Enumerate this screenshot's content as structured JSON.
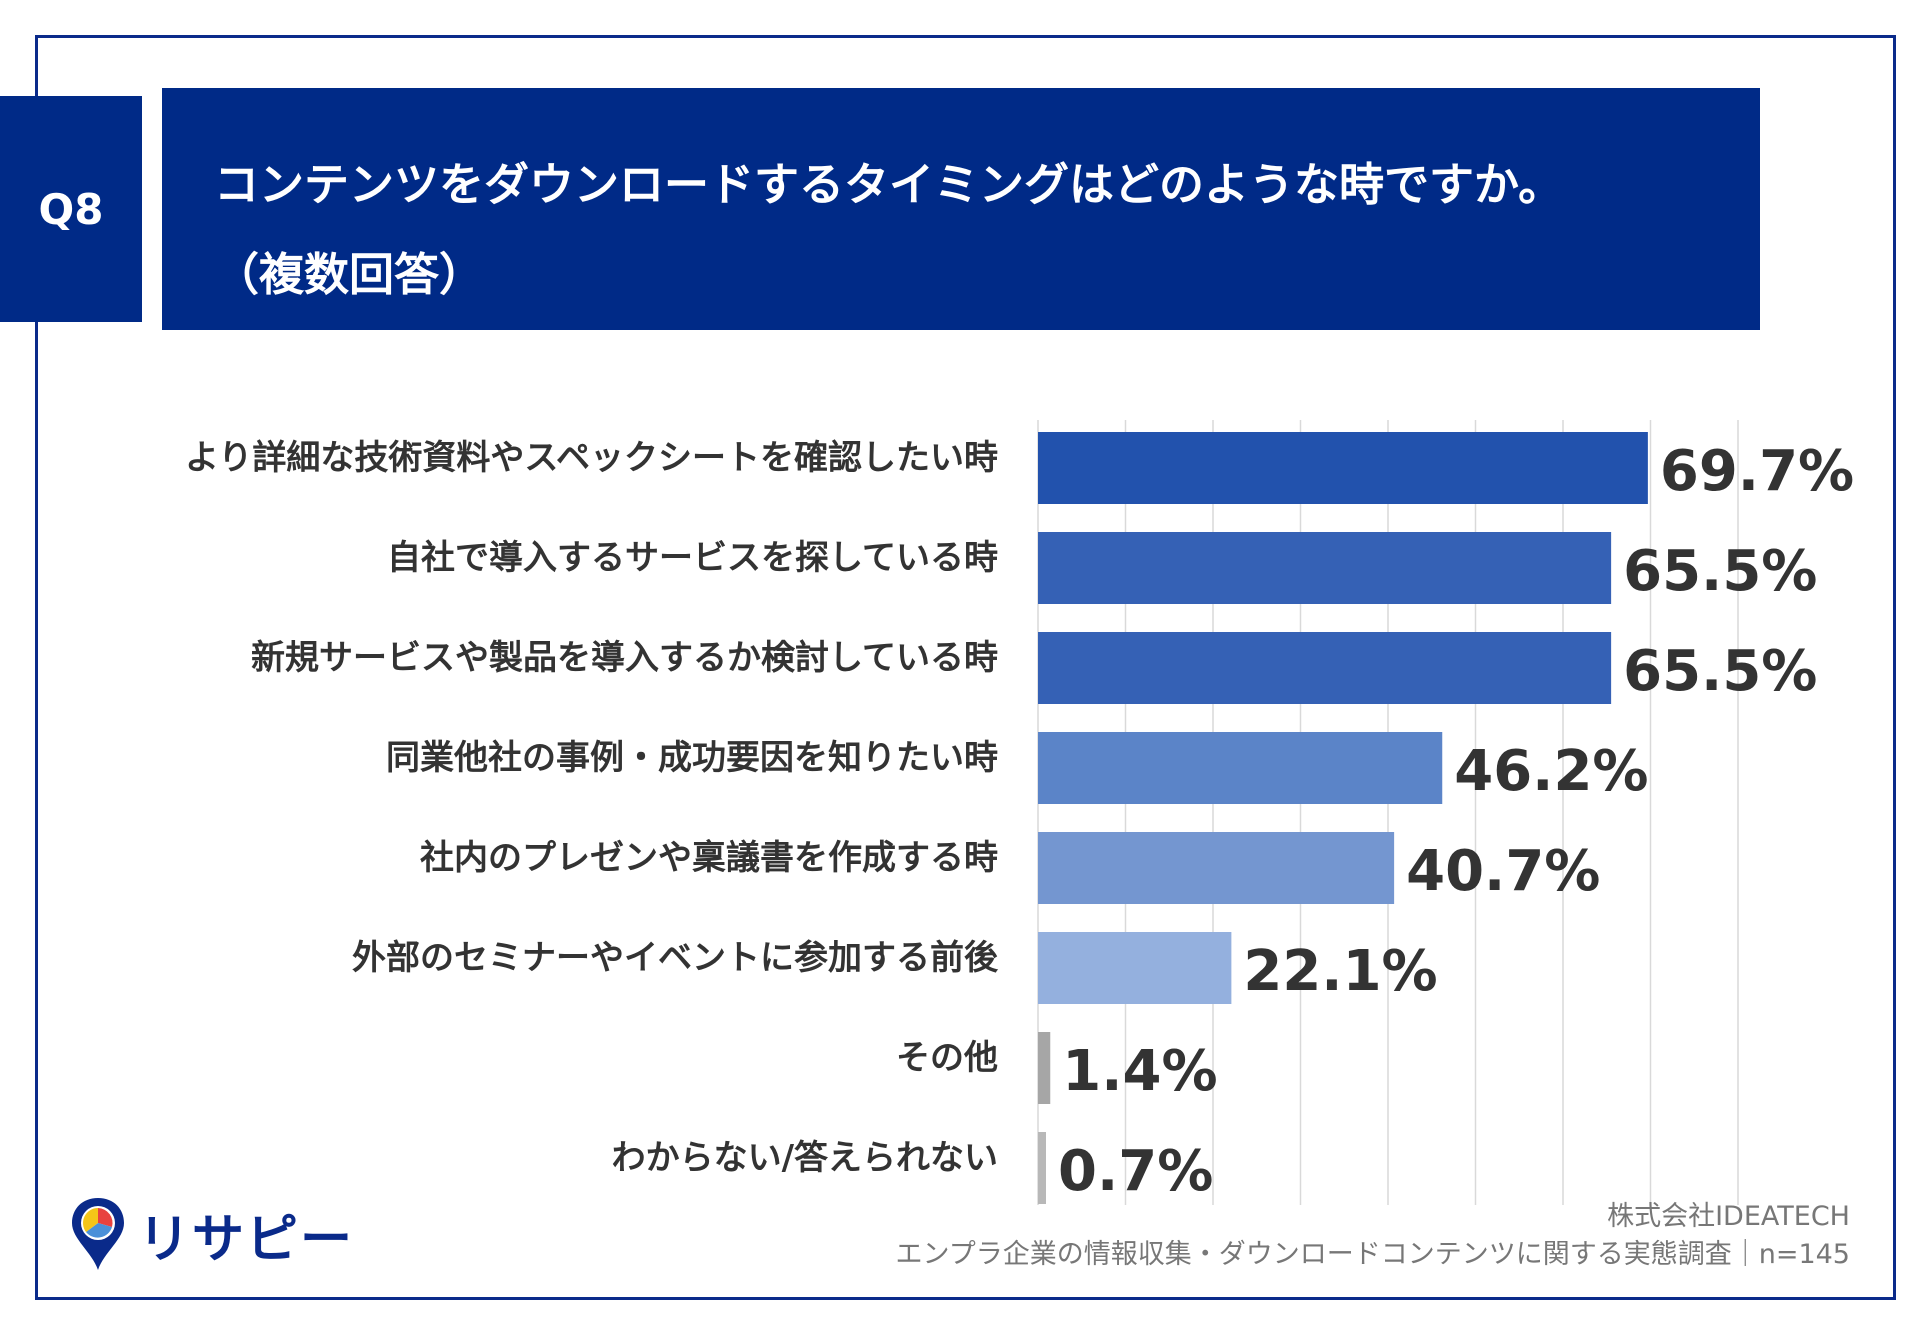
{
  "header": {
    "badge": "Q8",
    "title_line1": "コンテンツをダウンロードするタイミングはどのような時ですか。",
    "title_line2": "（複数回答）"
  },
  "chart_data": {
    "type": "bar",
    "orientation": "horizontal",
    "categories": [
      "より詳細な技術資料やスペックシートを確認したい時",
      "自社で導入するサービスを探している時",
      "新規サービスや製品を導入するか検討している時",
      "同業他社の事例・成功要因を知りたい時",
      "社内のプレゼンや稟議書を作成する時",
      "外部のセミナーやイベントに参加する前後",
      "その他",
      "わからない/答えられない"
    ],
    "values": [
      69.7,
      65.5,
      65.5,
      46.2,
      40.7,
      22.1,
      1.4,
      0.7
    ],
    "value_labels": [
      "69.7%",
      "65.5%",
      "65.5%",
      "46.2%",
      "40.7%",
      "22.1%",
      "1.4%",
      "0.7%"
    ],
    "bar_colors": [
      "#2252ad",
      "#3561b5",
      "#3561b5",
      "#5b84c8",
      "#7496d0",
      "#94b0de",
      "#a6a6a6",
      "#b8b8b8"
    ],
    "xlim": [
      0,
      80
    ],
    "grid": true,
    "grid_step": 10,
    "unit": "%"
  },
  "footer": {
    "company": "株式会社IDEATECH",
    "source": "エンプラ企業の情報収集・ダウンロードコンテンツに関する実態調査｜n=145"
  },
  "logo": {
    "name": "リサピー",
    "colors": {
      "primary": "#0a2a8a",
      "yellow": "#f5c518",
      "red": "#e8423f",
      "blue": "#4a90d9"
    }
  }
}
